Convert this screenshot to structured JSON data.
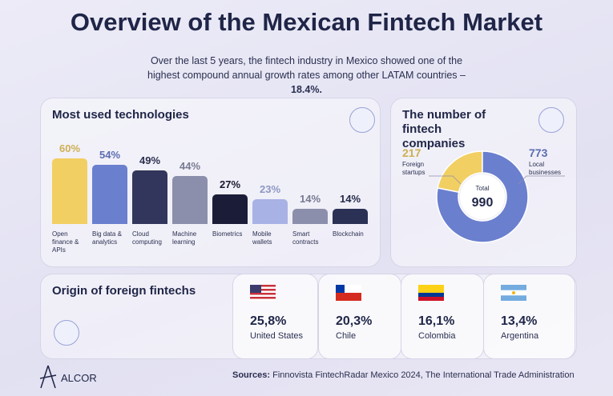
{
  "title": "Overview of the Mexican Fintech Market",
  "subtitle": "Over the last 5 years, the fintech industry in Mexico showed one of the highest compound annual growth rates among other LATAM countries –",
  "subtitle_highlight": "18.4%.",
  "chart_data": [
    {
      "type": "bar",
      "title": "Most used technologies",
      "categories": [
        "Open finance & APIs",
        "Big data & analytics",
        "Cloud computing",
        "Machine learning",
        "Biometrics",
        "Mobile wallets",
        "Smart contracts",
        "Blockchain"
      ],
      "values": [
        60,
        54,
        49,
        44,
        27,
        23,
        14,
        14
      ],
      "value_labels": [
        "60%",
        "54%",
        "49%",
        "44%",
        "27%",
        "23%",
        "14%",
        "14%"
      ],
      "colors": [
        "#f2cf63",
        "#6b7fcf",
        "#33365c",
        "#8c8fab",
        "#1b1d38",
        "#a8b2e4",
        "#8c8fab",
        "#2b3155"
      ]
    },
    {
      "type": "donut",
      "title": "The number of fintech companies",
      "categories": [
        "Foreign startups",
        "Local businesses"
      ],
      "values": [
        217,
        773
      ],
      "colors": [
        "#f2cf63",
        "#6b7fcf"
      ],
      "total_label": "Total",
      "total": 990
    }
  ],
  "origin": {
    "title": "Origin of foreign fintechs",
    "countries": [
      {
        "share": "25,8%",
        "name": "United States"
      },
      {
        "share": "20,3%",
        "name": "Chile"
      },
      {
        "share": "16,1%",
        "name": "Colombia"
      },
      {
        "share": "13,4%",
        "name": "Argentina"
      }
    ]
  },
  "footer": {
    "brand": "ALCOR",
    "sources_label": "Sources:",
    "sources": "Finnovista FintechRadar Mexico 2024, The International Trade Administration"
  }
}
